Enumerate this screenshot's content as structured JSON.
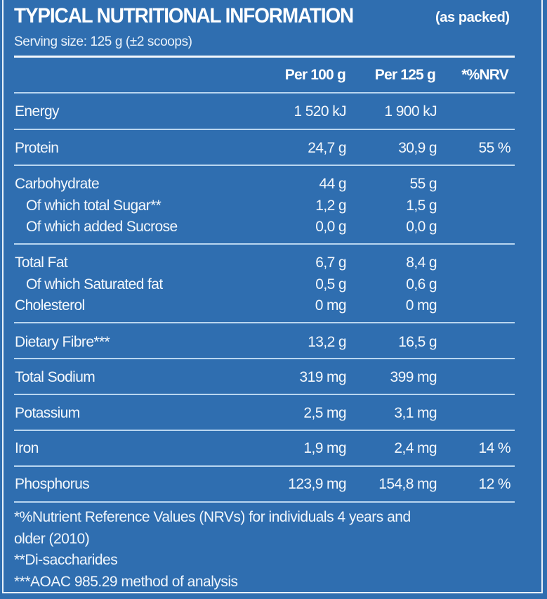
{
  "header": {
    "title": "TYPICAL NUTRITIONAL INFORMATION",
    "title_suffix": "(as packed)",
    "serving_size": "Serving size: 125 g (±2 scoops)"
  },
  "columns": {
    "per_100g": "Per 100 g",
    "per_125g": "Per 125 g",
    "nrv": "*%NRV"
  },
  "rows": [
    {
      "label": "Energy",
      "per_100g": "1 520 kJ",
      "per_125g": "1 900 kJ",
      "nrv": ""
    },
    {
      "label": "Protein",
      "per_100g": "24,7 g",
      "per_125g": "30,9 g",
      "nrv": "55 %"
    },
    {
      "label": "Carbohydrate",
      "per_100g": "44 g",
      "per_125g": "55 g",
      "nrv": ""
    },
    {
      "label": "Of which total Sugar**",
      "per_100g": "1,2 g",
      "per_125g": "1,5 g",
      "nrv": ""
    },
    {
      "label": "Of which added Sucrose",
      "per_100g": "0,0 g",
      "per_125g": "0,0 g",
      "nrv": ""
    },
    {
      "label": "Total Fat",
      "per_100g": "6,7 g",
      "per_125g": "8,4 g",
      "nrv": ""
    },
    {
      "label": "Of which Saturated fat",
      "per_100g": "0,5 g",
      "per_125g": "0,6 g",
      "nrv": ""
    },
    {
      "label": "Cholesterol",
      "per_100g": "0 mg",
      "per_125g": "0 mg",
      "nrv": ""
    },
    {
      "label": "Dietary Fibre***",
      "per_100g": "13,2 g",
      "per_125g": "16,5 g",
      "nrv": ""
    },
    {
      "label": "Total Sodium",
      "per_100g": "319 mg",
      "per_125g": "399 mg",
      "nrv": ""
    },
    {
      "label": "Potassium",
      "per_100g": "2,5 mg",
      "per_125g": "3,1 mg",
      "nrv": ""
    },
    {
      "label": "Iron",
      "per_100g": "1,9 mg",
      "per_125g": "2,4 mg",
      "nrv": "14 %"
    },
    {
      "label": "Phosphorus",
      "per_100g": "123,9 mg",
      "per_125g": "154,8 mg",
      "nrv": "12 %"
    }
  ],
  "footnotes": [
    "*%Nutrient Reference Values (NRVs) for individuals 4 years and",
    "older (2010)",
    "**Di-saccharides",
    "***AOAC 985.29 method of analysis"
  ],
  "colors": {
    "background": "#2f6eb0",
    "text": "#f4f8fc",
    "rule": "#b9d6f0"
  }
}
